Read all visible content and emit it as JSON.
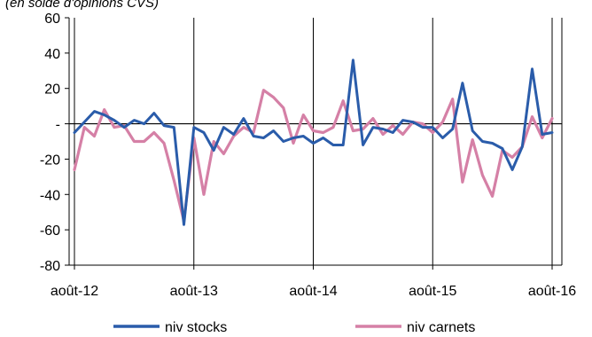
{
  "chart_data": {
    "type": "line",
    "subtitle": "(en solde d'opinions CVS)",
    "ylim": [
      -80,
      60
    ],
    "yticks": [
      {
        "value": 60,
        "label": "60"
      },
      {
        "value": 40,
        "label": "40"
      },
      {
        "value": 20,
        "label": "20"
      },
      {
        "value": 0,
        "label": "-"
      },
      {
        "value": -20,
        "label": "-20"
      },
      {
        "value": -40,
        "label": "-40"
      },
      {
        "value": -60,
        "label": "-60"
      },
      {
        "value": -80,
        "label": "-80"
      }
    ],
    "xticks": [
      {
        "index": 0,
        "label": "août-12"
      },
      {
        "index": 12,
        "label": "août-13"
      },
      {
        "index": 24,
        "label": "août-14"
      },
      {
        "index": 36,
        "label": "août-15"
      },
      {
        "index": 48,
        "label": "août-16"
      }
    ],
    "x_count": 49,
    "grid": "vertical at xticks",
    "legend_position": "bottom",
    "series": [
      {
        "name": "niv stocks",
        "color": "#2a5caa",
        "values": [
          -5,
          1,
          7,
          5,
          2,
          -2,
          2,
          0,
          6,
          -1,
          -2,
          -57,
          -2,
          -5,
          -15,
          -2,
          -6,
          3,
          -7,
          -8,
          -4,
          -10,
          -8,
          -7,
          -11,
          -8,
          -12,
          -12,
          36,
          -12,
          -2,
          -3,
          -5,
          2,
          1,
          -2,
          -2,
          -8,
          -3,
          23,
          -4,
          -10,
          -11,
          -14,
          -26,
          -13,
          31,
          -6,
          -5
        ]
      },
      {
        "name": "niv carnets",
        "color": "#d580a6",
        "values": [
          -26,
          -2,
          -7,
          8,
          -2,
          -1,
          -10,
          -10,
          -5,
          -11,
          -32,
          -55,
          -8,
          -40,
          -10,
          -17,
          -7,
          -2,
          -5,
          19,
          15,
          9,
          -11,
          5,
          -4,
          -5,
          -2,
          13,
          -4,
          -3,
          3,
          -6,
          -1,
          -6,
          1,
          0,
          -5,
          1,
          14,
          -33,
          -9,
          -29,
          -41,
          -15,
          -19,
          -13,
          4,
          -8,
          3
        ]
      }
    ]
  }
}
